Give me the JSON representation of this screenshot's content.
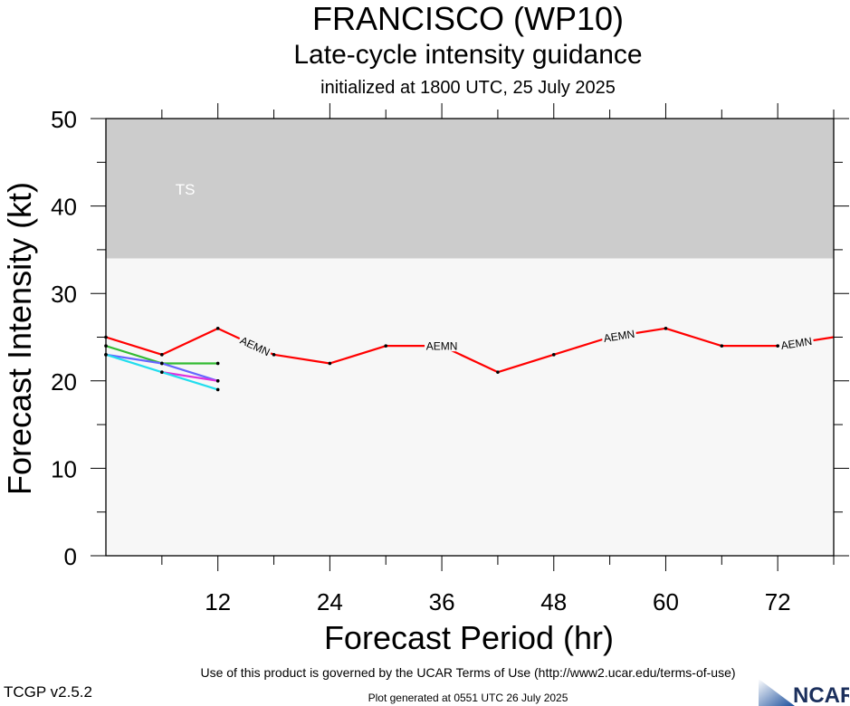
{
  "header": {
    "title": "FRANCISCO (WP10)",
    "subtitle": "Late-cycle intensity guidance",
    "initialized": "initialized at 1800 UTC, 25 July 2025"
  },
  "footer": {
    "terms": "Use of this product is governed by the UCAR Terms of Use (http://www2.ucar.edu/terms-of-use)",
    "version": "TCGP v2.5.2",
    "generated": "Plot generated at 0551 UTC   26 July 2025",
    "logo_text": "NCAR"
  },
  "chart_data": {
    "type": "line",
    "title": "FRANCISCO (WP10)",
    "xlabel": "Forecast Period (hr)",
    "ylabel": "Forecast Intensity (kt)",
    "xlim": [
      0,
      78
    ],
    "ylim": [
      0,
      50
    ],
    "xticks": [
      12,
      24,
      36,
      48,
      60,
      72
    ],
    "yticks": [
      0,
      10,
      20,
      30,
      40,
      50
    ],
    "bands": [
      {
        "label": "TS",
        "y0": 34,
        "y1": 50,
        "color": "#cccccc"
      },
      {
        "label": "",
        "y0": 0,
        "y1": 34,
        "color": "#f7f7f7"
      }
    ],
    "series": [
      {
        "name": "AEMN",
        "color": "#ff0000",
        "x": [
          0,
          6,
          12,
          18,
          24,
          30,
          36,
          42,
          48,
          54,
          60,
          66,
          72,
          78
        ],
        "y": [
          25,
          23,
          26,
          23,
          22,
          24,
          24,
          21,
          23,
          25,
          26,
          24,
          24,
          25
        ],
        "labels_at": [
          16,
          36,
          55,
          74
        ]
      },
      {
        "name": "",
        "color": "#33bb33",
        "x": [
          0,
          6,
          12
        ],
        "y": [
          24,
          22,
          22
        ]
      },
      {
        "name": "",
        "color": "#6666ff",
        "x": [
          0,
          6,
          12
        ],
        "y": [
          23,
          22,
          20
        ]
      },
      {
        "name": "",
        "color": "#dd33dd",
        "x": [
          6,
          12
        ],
        "y": [
          21,
          20
        ]
      },
      {
        "name": "",
        "color": "#22ddee",
        "x": [
          0,
          6,
          12
        ],
        "y": [
          23,
          21,
          19
        ]
      }
    ]
  }
}
